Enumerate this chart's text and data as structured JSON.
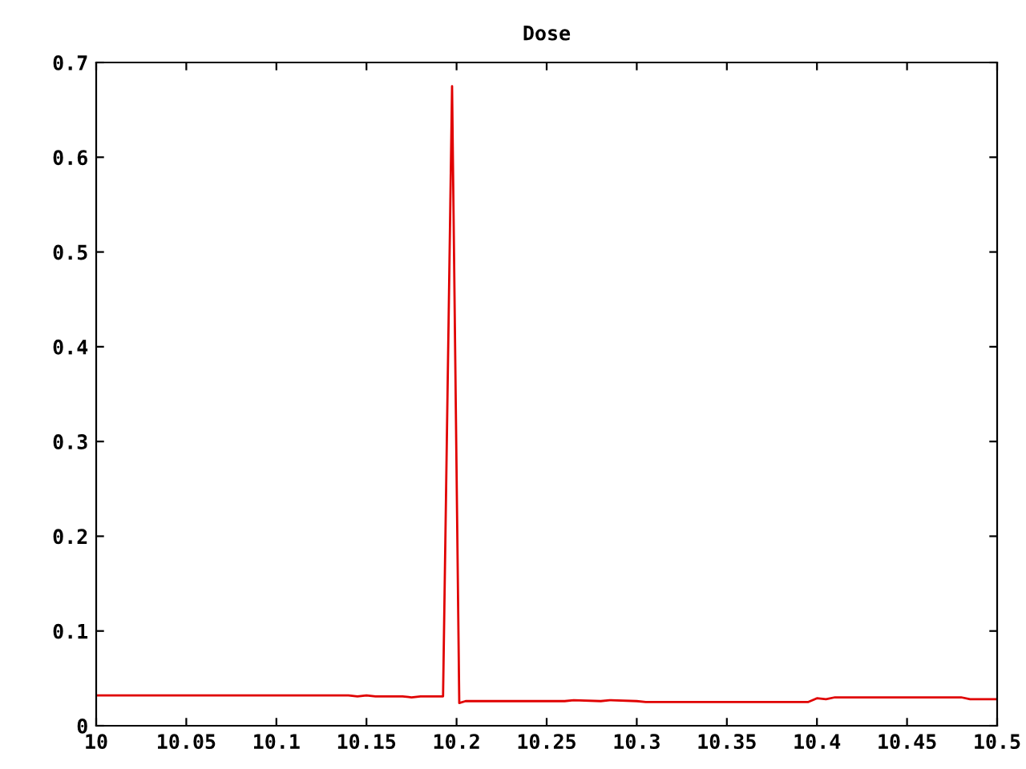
{
  "chart_data": {
    "type": "line",
    "title": "Dose",
    "x": [
      10,
      10.05,
      10.1,
      10.14,
      10.145,
      10.15,
      10.155,
      10.16,
      10.17,
      10.175,
      10.18,
      10.19,
      10.1925,
      10.1975,
      10.2015,
      10.205,
      10.21,
      10.25,
      10.26,
      10.265,
      10.28,
      10.285,
      10.3,
      10.305,
      10.35,
      10.395,
      10.4,
      10.405,
      10.41,
      10.45,
      10.48,
      10.485,
      10.5
    ],
    "series": [
      {
        "color": "#e00000",
        "values": [
          0.032,
          0.032,
          0.032,
          0.032,
          0.031,
          0.032,
          0.031,
          0.031,
          0.031,
          0.03,
          0.031,
          0.031,
          0.031,
          0.675,
          0.024,
          0.026,
          0.026,
          0.026,
          0.026,
          0.027,
          0.026,
          0.027,
          0.026,
          0.025,
          0.025,
          0.025,
          0.029,
          0.028,
          0.03,
          0.03,
          0.03,
          0.028,
          0.028
        ]
      }
    ],
    "xlim": [
      10,
      10.5
    ],
    "xticks": [
      10,
      10.05,
      10.1,
      10.15,
      10.2,
      10.25,
      10.3,
      10.35,
      10.4,
      10.45,
      10.5
    ],
    "ylim": [
      0,
      0.7
    ],
    "yticks": [
      0,
      0.1,
      0.2,
      0.3,
      0.4,
      0.5,
      0.6,
      0.7
    ],
    "grid": false,
    "marker": "none",
    "line_style": "solid"
  }
}
